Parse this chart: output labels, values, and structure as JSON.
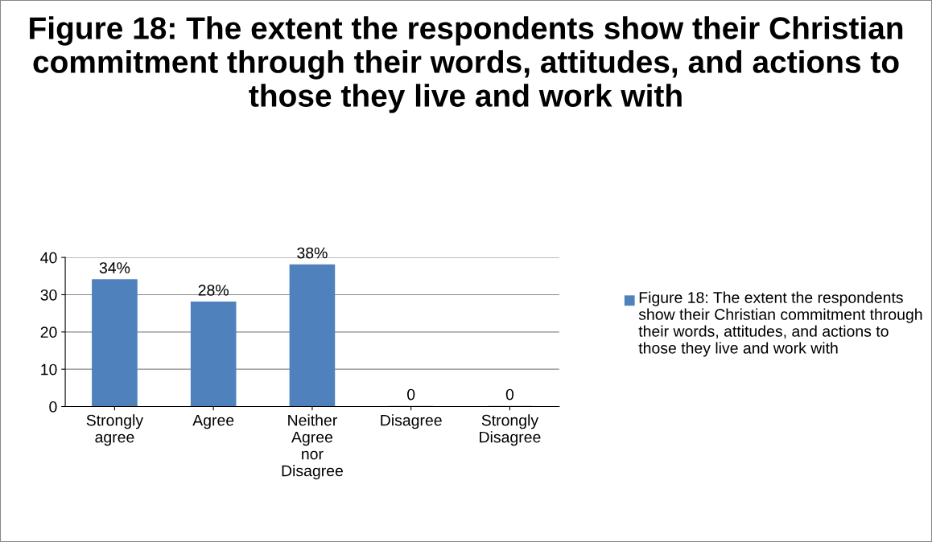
{
  "chart_data": {
    "type": "bar",
    "title": "Figure 18: The extent the respondents show their Christian commitment through their words, attitudes, and actions to those they live and work with",
    "categories": [
      "Strongly agree",
      "Agree",
      "Neither Agree nor Disagree",
      "Disagree",
      "Strongly Disagree"
    ],
    "series": [
      {
        "name": "Figure 18: The extent the respondents show their Christian commitment through their words, attitudes, and actions to those they live and work with",
        "color": "#4f81bd",
        "values": [
          34,
          28,
          38,
          0,
          0
        ],
        "value_labels": [
          "34%",
          "28%",
          "38%",
          "0",
          "0"
        ]
      }
    ],
    "ylim": [
      0,
      40
    ],
    "yticks": [
      0,
      10,
      20,
      30,
      40
    ],
    "grid": "y",
    "legend": "right"
  }
}
